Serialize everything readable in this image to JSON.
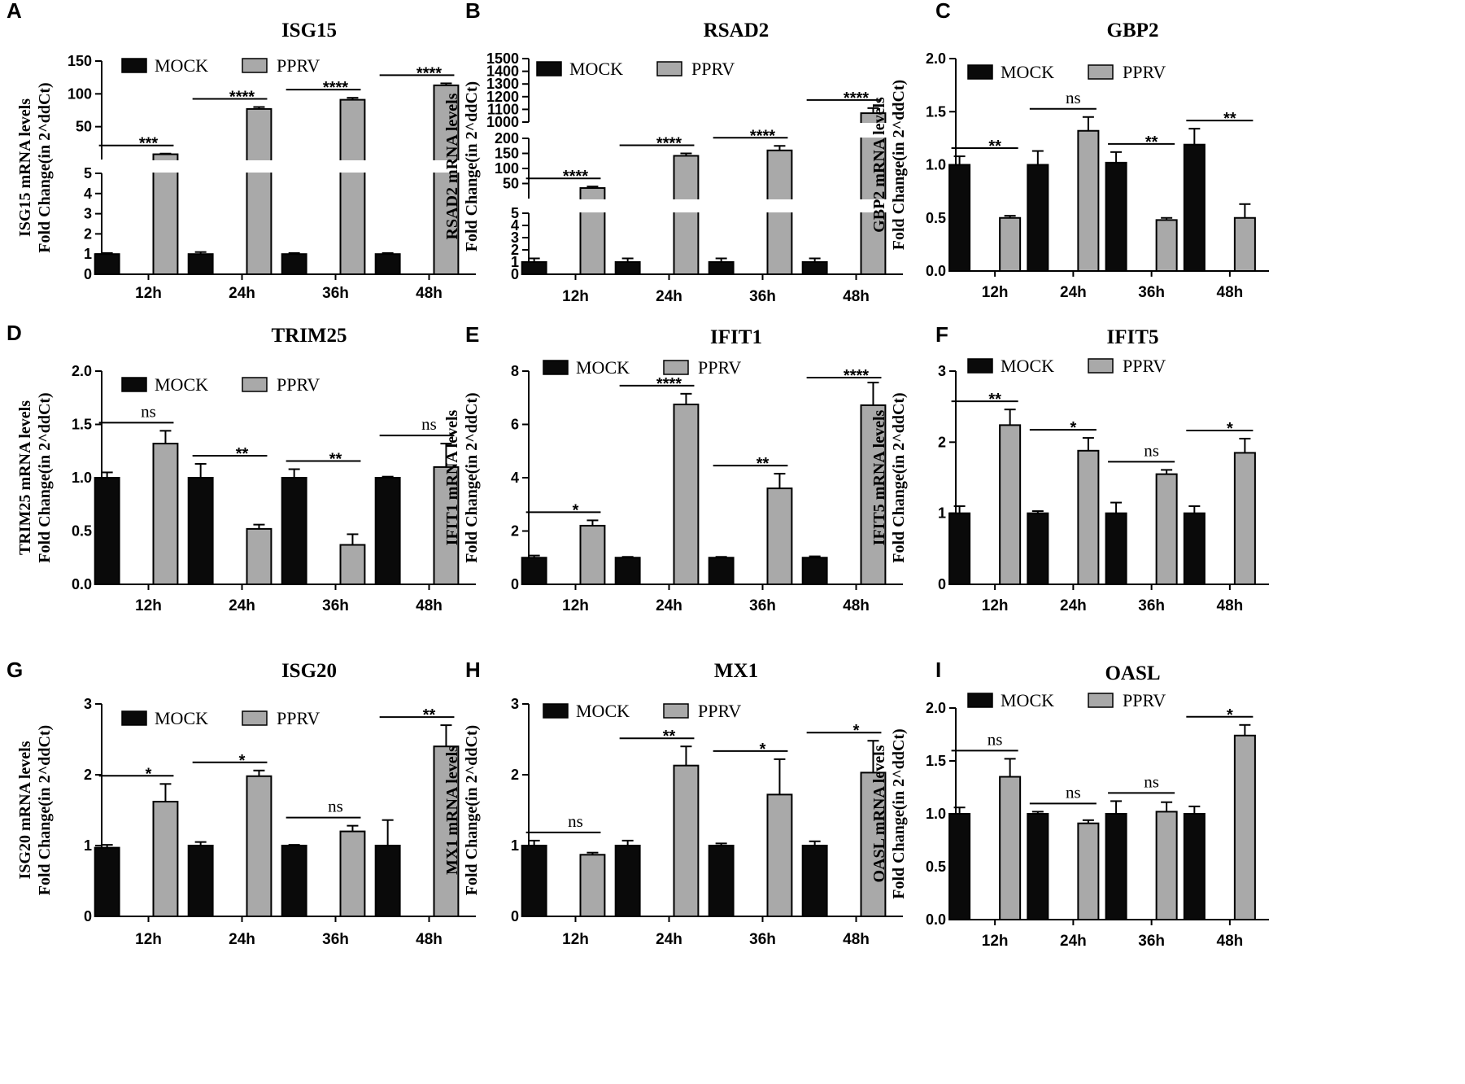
{
  "colors": {
    "mock": "#0a0a0a",
    "pprv": "#a9a9a9",
    "axis": "#000000"
  },
  "chart_data": [
    {
      "panel": "A",
      "type": "bar",
      "title": "ISG15",
      "ylabel_line1": "ISG15 mRNA levels",
      "ylabel_line2": "Fold Change(in 2^ddCt)",
      "categories": [
        "12h",
        "24h",
        "36h",
        "48h"
      ],
      "legend": [
        "MOCK",
        "PPRV"
      ],
      "series": [
        {
          "name": "MOCK",
          "values": [
            1.0,
            1.0,
            1.0,
            1.0
          ],
          "errors": [
            0.05,
            0.1,
            0.05,
            0.05
          ]
        },
        {
          "name": "PPRV",
          "values": [
            8,
            77,
            91,
            113
          ],
          "errors": [
            1,
            3,
            3,
            3
          ]
        }
      ],
      "axis_break": {
        "lower": [
          0,
          5
        ],
        "upper": [
          0,
          150
        ]
      },
      "ylim": [
        0,
        150
      ],
      "yticks_lower": [
        0,
        1,
        2,
        3,
        4,
        5
      ],
      "yticks_upper": [
        50,
        100,
        150
      ],
      "significance": [
        "***",
        "****",
        "****",
        "****"
      ]
    },
    {
      "panel": "B",
      "type": "bar",
      "title": "RSAD2",
      "ylabel_line1": "RSAD2 mRNA levels",
      "ylabel_line2": "Fold Change(in 2^ddCt)",
      "categories": [
        "12h",
        "24h",
        "36h",
        "48h"
      ],
      "legend": [
        "MOCK",
        "PPRV"
      ],
      "series": [
        {
          "name": "MOCK",
          "values": [
            1.0,
            1.0,
            1.0,
            1.0
          ],
          "errors": [
            0.3,
            0.3,
            0.3,
            0.3
          ]
        },
        {
          "name": "PPRV",
          "values": [
            35,
            142,
            160,
            1070
          ],
          "errors": [
            5,
            8,
            15,
            40
          ]
        }
      ],
      "axis_break": {
        "lower": [
          0,
          5
        ],
        "middle": [
          0,
          200
        ],
        "upper": [
          1000,
          1500
        ]
      },
      "ylim": [
        0,
        1500
      ],
      "yticks_lower": [
        0,
        1,
        2,
        3,
        4,
        5
      ],
      "yticks_middle": [
        50,
        100,
        150,
        200
      ],
      "yticks_upper": [
        1000,
        1100,
        1200,
        1300,
        1400,
        1500
      ],
      "significance": [
        "****",
        "****",
        "****",
        "****"
      ]
    },
    {
      "panel": "C",
      "type": "bar",
      "title": "GBP2",
      "ylabel_line1": "GBP2 mRNA levels",
      "ylabel_line2": "Fold Change(in 2^ddCt)",
      "categories": [
        "12h",
        "24h",
        "36h",
        "48h"
      ],
      "legend": [
        "MOCK",
        "PPRV"
      ],
      "series": [
        {
          "name": "MOCK",
          "values": [
            1.0,
            1.0,
            1.02,
            1.19
          ],
          "errors": [
            0.08,
            0.13,
            0.1,
            0.15
          ]
        },
        {
          "name": "PPRV",
          "values": [
            0.5,
            1.32,
            0.48,
            0.5
          ],
          "errors": [
            0.02,
            0.13,
            0.02,
            0.13
          ]
        }
      ],
      "ylim": [
        0,
        2.0
      ],
      "yticks": [
        "0.0",
        "0.5",
        "1.0",
        "1.5",
        "2.0"
      ],
      "significance": [
        "**",
        "ns",
        "**",
        "**"
      ]
    },
    {
      "panel": "D",
      "type": "bar",
      "title": "TRIM25",
      "ylabel_line1": "TRIM25  mRNA levels",
      "ylabel_line2": "Fold Change(in 2^ddCt)",
      "categories": [
        "12h",
        "24h",
        "36h",
        "48h"
      ],
      "legend": [
        "MOCK",
        "PPRV"
      ],
      "series": [
        {
          "name": "MOCK",
          "values": [
            1.0,
            1.0,
            1.0,
            1.0
          ],
          "errors": [
            0.05,
            0.13,
            0.08,
            0.01
          ]
        },
        {
          "name": "PPRV",
          "values": [
            1.32,
            0.52,
            0.37,
            1.1
          ],
          "errors": [
            0.12,
            0.04,
            0.1,
            0.22
          ]
        }
      ],
      "ylim": [
        0,
        2.0
      ],
      "yticks": [
        "0.0",
        "0.5",
        "1.0",
        "1.5",
        "2.0"
      ],
      "significance": [
        "ns",
        "**",
        "**",
        "ns"
      ]
    },
    {
      "panel": "E",
      "type": "bar",
      "title": "IFIT1",
      "ylabel_line1": "IFIT1 mRNA levels",
      "ylabel_line2": "Fold Change(in 2^ddCt)",
      "categories": [
        "12h",
        "24h",
        "36h",
        "48h"
      ],
      "legend": [
        "MOCK",
        "PPRV"
      ],
      "series": [
        {
          "name": "MOCK",
          "values": [
            1.0,
            1.0,
            1.0,
            1.0
          ],
          "errors": [
            0.08,
            0.03,
            0.03,
            0.05
          ]
        },
        {
          "name": "PPRV",
          "values": [
            2.2,
            6.75,
            3.6,
            6.72
          ],
          "errors": [
            0.2,
            0.4,
            0.55,
            0.85
          ]
        }
      ],
      "ylim": [
        0,
        8
      ],
      "yticks": [
        "0",
        "2",
        "4",
        "6",
        "8"
      ],
      "significance": [
        "*",
        "****",
        "**",
        "****"
      ]
    },
    {
      "panel": "F",
      "type": "bar",
      "title": "IFIT5",
      "ylabel_line1": "IFIT5 mRNA levels",
      "ylabel_line2": "Fold Change(in 2^ddCt)",
      "categories": [
        "12h",
        "24h",
        "36h",
        "48h"
      ],
      "legend": [
        "MOCK",
        "PPRV"
      ],
      "series": [
        {
          "name": "MOCK",
          "values": [
            1.0,
            1.0,
            1.0,
            1.0
          ],
          "errors": [
            0.1,
            0.03,
            0.15,
            0.1
          ]
        },
        {
          "name": "PPRV",
          "values": [
            2.24,
            1.88,
            1.55,
            1.85
          ],
          "errors": [
            0.22,
            0.18,
            0.06,
            0.2
          ]
        }
      ],
      "ylim": [
        0,
        3
      ],
      "yticks": [
        "0",
        "1",
        "2",
        "3"
      ],
      "significance": [
        "**",
        "*",
        "ns",
        "*"
      ]
    },
    {
      "panel": "G",
      "type": "bar",
      "title": "ISG20",
      "ylabel_line1": "ISG20 mRNA levels",
      "ylabel_line2": "Fold Change(in 2^ddCt)",
      "categories": [
        "12h",
        "24h",
        "36h",
        "48h"
      ],
      "legend": [
        "MOCK",
        "PPRV"
      ],
      "series": [
        {
          "name": "MOCK",
          "values": [
            0.97,
            1.0,
            1.0,
            1.0
          ],
          "errors": [
            0.04,
            0.05,
            0.01,
            0.36
          ]
        },
        {
          "name": "PPRV",
          "values": [
            1.62,
            1.98,
            1.2,
            2.4
          ],
          "errors": [
            0.25,
            0.08,
            0.08,
            0.3
          ]
        }
      ],
      "ylim": [
        0,
        3
      ],
      "yticks": [
        "0",
        "1",
        "2",
        "3"
      ],
      "significance": [
        "*",
        "*",
        "ns",
        "**"
      ]
    },
    {
      "panel": "H",
      "type": "bar",
      "title": "MX1",
      "ylabel_line1": "MX1 mRNA levels",
      "ylabel_line2": "Fold Change(in 2^ddCt)",
      "categories": [
        "12h",
        "24h",
        "36h",
        "48h"
      ],
      "legend": [
        "MOCK",
        "PPRV"
      ],
      "series": [
        {
          "name": "MOCK",
          "values": [
            1.0,
            1.0,
            1.0,
            1.0
          ],
          "errors": [
            0.07,
            0.07,
            0.03,
            0.06
          ]
        },
        {
          "name": "PPRV",
          "values": [
            0.87,
            2.13,
            1.72,
            2.03
          ],
          "errors": [
            0.03,
            0.27,
            0.5,
            0.45
          ]
        }
      ],
      "ylim": [
        0,
        3
      ],
      "yticks": [
        "0",
        "1",
        "2",
        "3"
      ],
      "significance": [
        "ns",
        "**",
        "*",
        "*"
      ]
    },
    {
      "panel": "I",
      "type": "bar",
      "title": "OASL",
      "ylabel_line1": "OASL mRNA levels",
      "ylabel_line2": "Fold Change(in 2^ddCt)",
      "categories": [
        "12h",
        "24h",
        "36h",
        "48h"
      ],
      "legend": [
        "MOCK",
        "PPRV"
      ],
      "series": [
        {
          "name": "MOCK",
          "values": [
            1.0,
            1.0,
            1.0,
            1.0
          ],
          "errors": [
            0.06,
            0.02,
            0.12,
            0.07
          ]
        },
        {
          "name": "PPRV",
          "values": [
            1.35,
            0.91,
            1.02,
            1.74
          ],
          "errors": [
            0.17,
            0.03,
            0.09,
            0.1
          ]
        }
      ],
      "ylim": [
        0,
        2.0
      ],
      "yticks": [
        "0.0",
        "0.5",
        "1.0",
        "1.5",
        "2.0"
      ],
      "significance": [
        "ns",
        "ns",
        "ns",
        "*"
      ]
    }
  ]
}
